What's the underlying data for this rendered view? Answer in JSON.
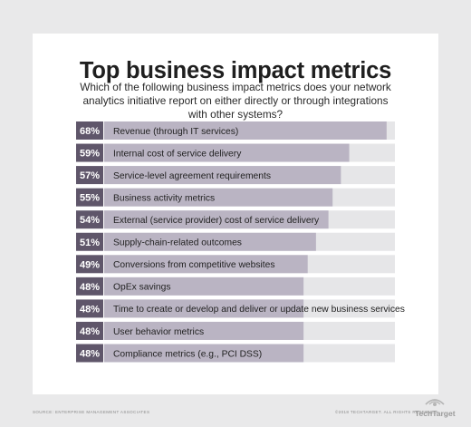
{
  "header": {
    "title": "Top business impact metrics",
    "subtitle": "Which of the following business impact metrics does your network analytics initiative report on either directly or through integrations with other systems?"
  },
  "footer": {
    "source": "SOURCE: ENTERPRISE MANAGEMENT ASSOCIATES",
    "copyright": "©2018 TECHTARGET. ALL RIGHTS RESERVED",
    "logo": "TechTarget"
  },
  "colors": {
    "label_box": "#5f566a",
    "bar_fill": "#bab4c3",
    "bar_track": "#e6e6e8",
    "label_text": "#ffffff",
    "category_text": "#222222"
  },
  "chart_data": {
    "type": "bar",
    "orientation": "horizontal",
    "categories": [
      "Revenue (through IT services)",
      "Internal cost of service delivery",
      "Service-level agreement requirements",
      "Business activity metrics",
      "External (service provider) cost of service delivery",
      "Supply-chain-related outcomes",
      "Conversions from competitive websites",
      "OpEx savings",
      "Time to create or develop and deliver or update new business services",
      "User behavior metrics",
      "Compliance metrics (e.g., PCI DSS)"
    ],
    "values": [
      68,
      59,
      57,
      55,
      54,
      51,
      49,
      48,
      48,
      48,
      48
    ],
    "value_labels": [
      "68%",
      "59%",
      "57%",
      "55%",
      "54%",
      "51%",
      "49%",
      "48%",
      "48%",
      "48%",
      "48%"
    ],
    "title": "Top business impact metrics",
    "xlabel": "",
    "ylabel": "",
    "xlim": [
      0,
      70
    ],
    "grid": false,
    "legend": "none"
  }
}
